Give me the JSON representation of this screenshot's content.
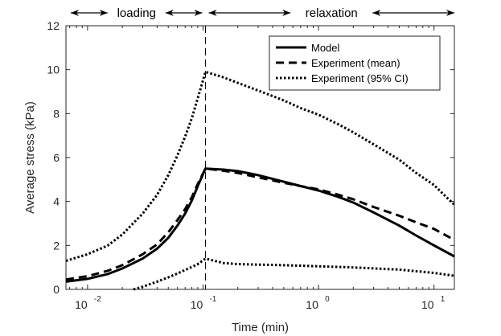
{
  "chart_data": {
    "type": "line",
    "xlabel": "Time (min)",
    "ylabel": "Average stress (kPa)",
    "x_scale": "log",
    "xlim": [
      0.0065,
      15
    ],
    "ylim": [
      0,
      12
    ],
    "x_ticks": [
      {
        "value": 0.01,
        "base": "10",
        "exp": "-2"
      },
      {
        "value": 0.1,
        "base": "10",
        "exp": "-1"
      },
      {
        "value": 1,
        "base": "10",
        "exp": "0"
      },
      {
        "value": 10,
        "base": "10",
        "exp": "1"
      }
    ],
    "y_ticks": [
      0,
      2,
      4,
      6,
      8,
      10,
      12
    ],
    "grid": false,
    "legend_position": "top-right",
    "vline_x": 0.105,
    "annotations": {
      "loading": "loading",
      "relaxation": "relaxation"
    },
    "series": [
      {
        "name": "Model",
        "color": "#000000",
        "style": "solid",
        "points": [
          [
            0.0065,
            0.35
          ],
          [
            0.01,
            0.48
          ],
          [
            0.015,
            0.7
          ],
          [
            0.02,
            0.95
          ],
          [
            0.03,
            1.4
          ],
          [
            0.04,
            1.85
          ],
          [
            0.05,
            2.35
          ],
          [
            0.06,
            2.9
          ],
          [
            0.07,
            3.45
          ],
          [
            0.08,
            4.05
          ],
          [
            0.09,
            4.7
          ],
          [
            0.105,
            5.5
          ],
          [
            0.15,
            5.45
          ],
          [
            0.2,
            5.38
          ],
          [
            0.3,
            5.2
          ],
          [
            0.5,
            4.9
          ],
          [
            0.7,
            4.7
          ],
          [
            1.0,
            4.5
          ],
          [
            1.5,
            4.2
          ],
          [
            2.0,
            3.95
          ],
          [
            3.0,
            3.5
          ],
          [
            5.0,
            2.9
          ],
          [
            7.0,
            2.45
          ],
          [
            10.0,
            2.0
          ],
          [
            15.0,
            1.5
          ]
        ]
      },
      {
        "name": "Experiment (mean)",
        "color": "#000000",
        "style": "dashed",
        "points": [
          [
            0.0065,
            0.45
          ],
          [
            0.01,
            0.6
          ],
          [
            0.015,
            0.85
          ],
          [
            0.02,
            1.1
          ],
          [
            0.03,
            1.6
          ],
          [
            0.04,
            2.05
          ],
          [
            0.05,
            2.6
          ],
          [
            0.06,
            3.15
          ],
          [
            0.07,
            3.65
          ],
          [
            0.08,
            4.2
          ],
          [
            0.09,
            4.8
          ],
          [
            0.105,
            5.5
          ],
          [
            0.15,
            5.4
          ],
          [
            0.2,
            5.3
          ],
          [
            0.3,
            5.1
          ],
          [
            0.5,
            4.85
          ],
          [
            0.7,
            4.7
          ],
          [
            1.0,
            4.55
          ],
          [
            1.5,
            4.3
          ],
          [
            2.0,
            4.1
          ],
          [
            3.0,
            3.75
          ],
          [
            5.0,
            3.35
          ],
          [
            7.0,
            3.05
          ],
          [
            10.0,
            2.75
          ],
          [
            15.0,
            2.25
          ]
        ]
      },
      {
        "name": "Experiment (95% CI)",
        "color": "#000000",
        "style": "dotted",
        "points": [
          [
            0.0065,
            1.3
          ],
          [
            0.01,
            1.6
          ],
          [
            0.015,
            2.0
          ],
          [
            0.02,
            2.5
          ],
          [
            0.03,
            3.45
          ],
          [
            0.04,
            4.3
          ],
          [
            0.05,
            5.2
          ],
          [
            0.06,
            6.1
          ],
          [
            0.07,
            6.95
          ],
          [
            0.08,
            7.8
          ],
          [
            0.09,
            8.7
          ],
          [
            0.105,
            9.9
          ],
          [
            0.15,
            9.65
          ],
          [
            0.2,
            9.4
          ],
          [
            0.3,
            9.05
          ],
          [
            0.5,
            8.6
          ],
          [
            0.7,
            8.25
          ],
          [
            1.0,
            7.95
          ],
          [
            1.5,
            7.5
          ],
          [
            2.0,
            7.15
          ],
          [
            3.0,
            6.6
          ],
          [
            5.0,
            5.9
          ],
          [
            7.0,
            5.3
          ],
          [
            10.0,
            4.75
          ],
          [
            15.0,
            3.85
          ]
        ]
      },
      {
        "name": "",
        "color": "#000000",
        "style": "dotted",
        "points": [
          [
            0.025,
            0.0
          ],
          [
            0.03,
            0.12
          ],
          [
            0.04,
            0.35
          ],
          [
            0.05,
            0.55
          ],
          [
            0.06,
            0.72
          ],
          [
            0.07,
            0.88
          ],
          [
            0.08,
            1.02
          ],
          [
            0.09,
            1.15
          ],
          [
            0.105,
            1.4
          ],
          [
            0.15,
            1.2
          ],
          [
            0.2,
            1.15
          ],
          [
            0.5,
            1.1
          ],
          [
            1.0,
            1.05
          ],
          [
            2.0,
            1.0
          ],
          [
            5.0,
            0.9
          ],
          [
            10.0,
            0.75
          ],
          [
            15.0,
            0.62
          ]
        ]
      }
    ]
  }
}
